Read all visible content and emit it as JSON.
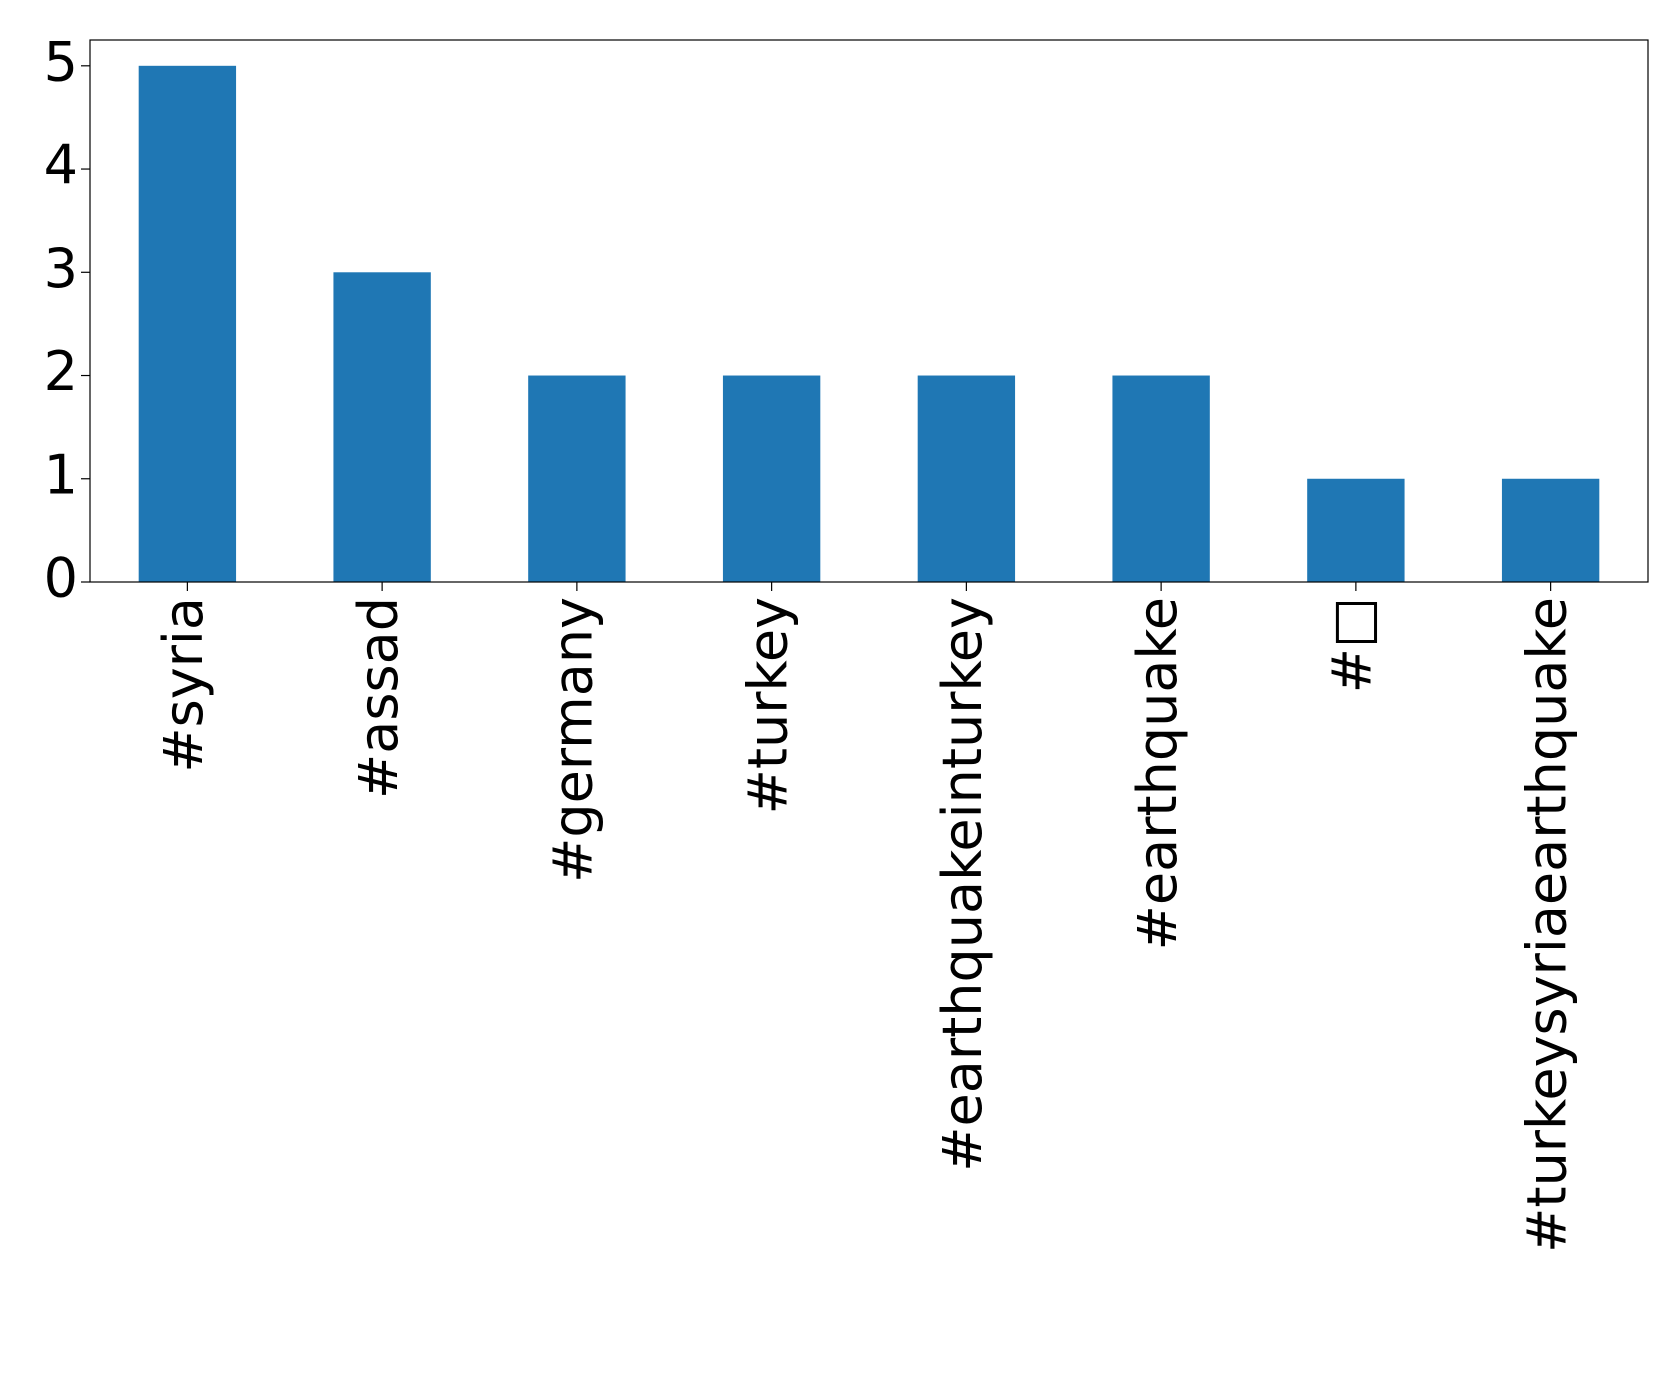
{
  "chart_data": {
    "type": "bar",
    "categories": [
      "#syria",
      "#assad",
      "#germany",
      "#turkey",
      "#earthquakeinturkey",
      "#earthquake",
      "#□",
      "#turkeysyriaearthquake"
    ],
    "values": [
      5,
      3,
      2,
      2,
      2,
      2,
      1,
      1
    ],
    "color": "#1f77b4",
    "ylim": [
      0,
      5.25
    ],
    "yticks": [
      0,
      1,
      2,
      3,
      4,
      5
    ],
    "grid": false
  }
}
